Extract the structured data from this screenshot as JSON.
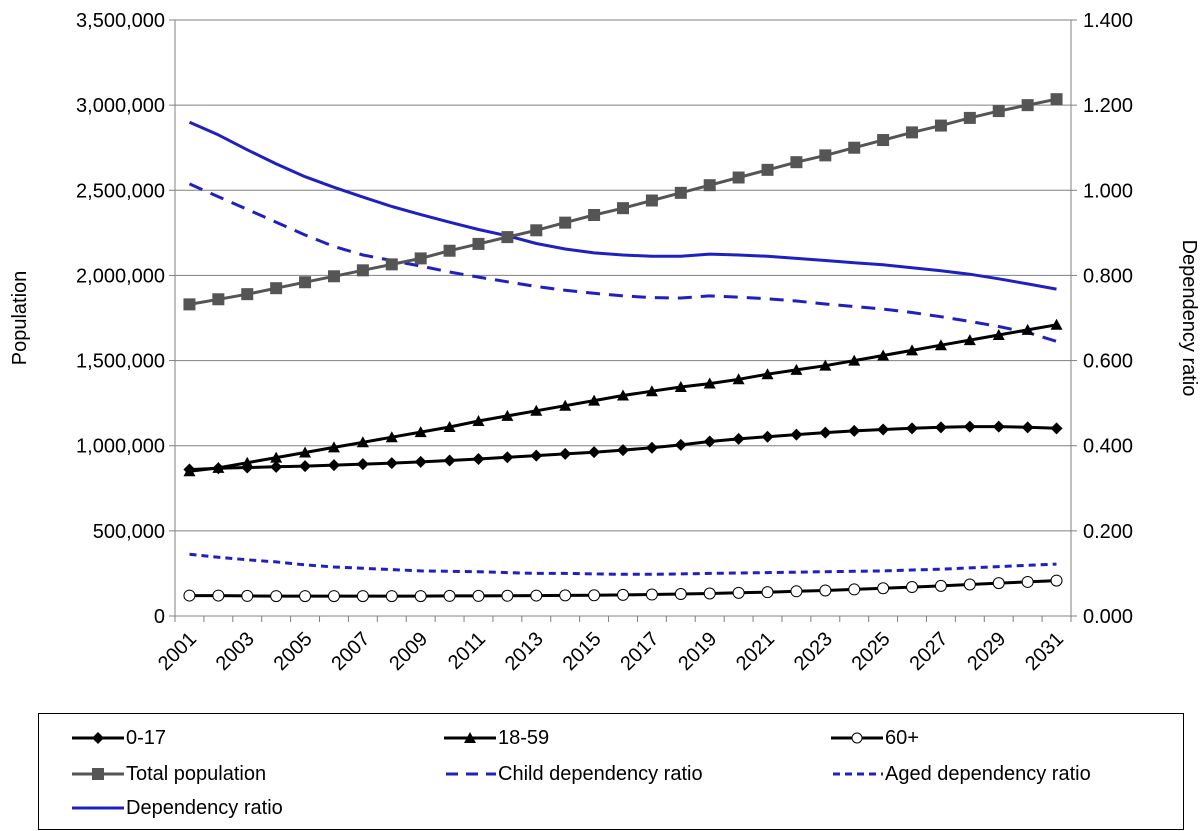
{
  "chart_data": {
    "type": "line",
    "x": [
      2001,
      2002,
      2003,
      2004,
      2005,
      2006,
      2007,
      2008,
      2009,
      2010,
      2011,
      2012,
      2013,
      2014,
      2015,
      2016,
      2017,
      2018,
      2019,
      2020,
      2021,
      2022,
      2023,
      2024,
      2025,
      2026,
      2027,
      2028,
      2029,
      2030,
      2031
    ],
    "x_tick_labels": [
      "2001",
      "2003",
      "2005",
      "2007",
      "2009",
      "2011",
      "2013",
      "2015",
      "2017",
      "2019",
      "2021",
      "2023",
      "2025",
      "2027",
      "2029",
      "2031"
    ],
    "ylabel": "Population",
    "y2label": "Dependency ratio",
    "ylim": [
      0,
      3500000
    ],
    "y2lim": [
      0,
      1.4
    ],
    "y_tick_labels": [
      "0",
      "500,000",
      "1,000,000",
      "1,500,000",
      "2,000,000",
      "2,500,000",
      "3,000,000",
      "3,500,000"
    ],
    "y2_tick_labels": [
      "0.000",
      "0.200",
      "0.400",
      "0.600",
      "0.800",
      "1.000",
      "1.200",
      "1.400"
    ],
    "grid": true,
    "legend_position": "bottom",
    "series": [
      {
        "name": "0-17",
        "axis": "left",
        "color": "#000000",
        "marker": "diamond",
        "dash": "solid",
        "values": [
          860000,
          868000,
          872000,
          876000,
          880000,
          886000,
          892000,
          898000,
          905000,
          913000,
          922000,
          932000,
          942000,
          952000,
          962000,
          974000,
          988000,
          1005000,
          1025000,
          1040000,
          1053000,
          1065000,
          1077000,
          1087000,
          1095000,
          1102000,
          1108000,
          1112000,
          1112000,
          1108000,
          1102000
        ]
      },
      {
        "name": "18-59",
        "axis": "left",
        "color": "#000000",
        "marker": "triangle",
        "dash": "solid",
        "values": [
          850000,
          870000,
          900000,
          930000,
          960000,
          990000,
          1020000,
          1050000,
          1080000,
          1110000,
          1145000,
          1175000,
          1205000,
          1235000,
          1265000,
          1295000,
          1320000,
          1345000,
          1365000,
          1390000,
          1420000,
          1445000,
          1470000,
          1500000,
          1530000,
          1560000,
          1590000,
          1620000,
          1650000,
          1680000,
          1710000
        ]
      },
      {
        "name": "60+",
        "axis": "left",
        "color": "#000000",
        "marker": "circle",
        "dash": "solid",
        "values": [
          120000,
          120000,
          118000,
          117000,
          117000,
          117000,
          117000,
          117000,
          117000,
          118000,
          118000,
          119000,
          120000,
          121000,
          122000,
          124000,
          126000,
          129000,
          132000,
          136000,
          140000,
          145000,
          150000,
          156000,
          163000,
          170000,
          177000,
          185000,
          193000,
          200000,
          208000
        ]
      },
      {
        "name": "Total population",
        "axis": "left",
        "color": "#555555",
        "marker": "square",
        "dash": "solid",
        "values": [
          1830000,
          1860000,
          1890000,
          1925000,
          1960000,
          1995000,
          2030000,
          2065000,
          2100000,
          2145000,
          2185000,
          2225000,
          2265000,
          2310000,
          2355000,
          2395000,
          2440000,
          2485000,
          2530000,
          2575000,
          2620000,
          2665000,
          2705000,
          2750000,
          2795000,
          2840000,
          2880000,
          2925000,
          2965000,
          3000000,
          3035000
        ]
      },
      {
        "name": "Child dependency ratio",
        "axis": "right",
        "color": "#2020c0",
        "marker": "none",
        "dash": "longdash",
        "values": [
          1.015,
          0.985,
          0.955,
          0.925,
          0.895,
          0.868,
          0.848,
          0.835,
          0.822,
          0.808,
          0.796,
          0.785,
          0.774,
          0.765,
          0.758,
          0.752,
          0.748,
          0.747,
          0.752,
          0.749,
          0.745,
          0.74,
          0.733,
          0.727,
          0.721,
          0.713,
          0.703,
          0.692,
          0.68,
          0.666,
          0.645
        ]
      },
      {
        "name": "Aged dependency ratio",
        "axis": "right",
        "color": "#2020c0",
        "marker": "none",
        "dash": "shortdash",
        "values": [
          0.145,
          0.138,
          0.132,
          0.127,
          0.12,
          0.115,
          0.112,
          0.109,
          0.106,
          0.105,
          0.104,
          0.102,
          0.1,
          0.1,
          0.099,
          0.098,
          0.098,
          0.099,
          0.1,
          0.101,
          0.102,
          0.103,
          0.104,
          0.105,
          0.106,
          0.108,
          0.11,
          0.113,
          0.116,
          0.119,
          0.122
        ]
      },
      {
        "name": "Dependency ratio",
        "axis": "right",
        "color": "#2020c0",
        "marker": "none",
        "dash": "solid",
        "values": [
          1.16,
          1.13,
          1.095,
          1.062,
          1.032,
          1.007,
          0.984,
          0.962,
          0.943,
          0.925,
          0.908,
          0.893,
          0.875,
          0.862,
          0.853,
          0.848,
          0.845,
          0.845,
          0.85,
          0.848,
          0.845,
          0.84,
          0.835,
          0.83,
          0.825,
          0.818,
          0.811,
          0.803,
          0.792,
          0.78,
          0.768
        ]
      }
    ]
  }
}
